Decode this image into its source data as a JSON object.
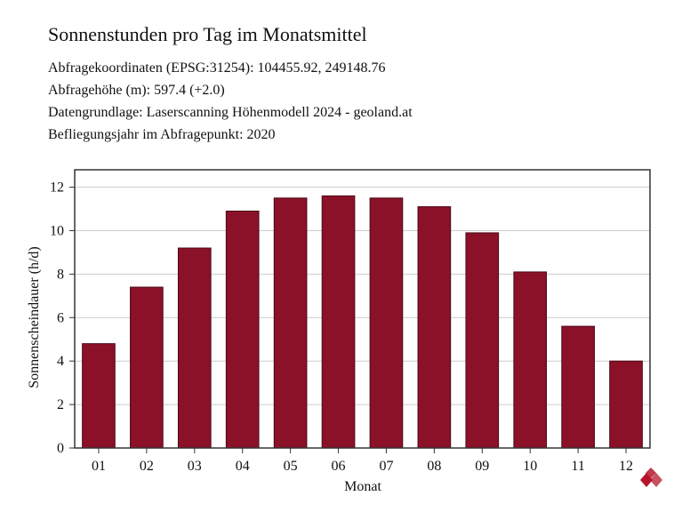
{
  "header": {
    "title": "Sonnenstunden pro Tag im Monatsmittel",
    "coords": "Abfragekoordinaten (EPSG:31254): 104455.92, 249148.76",
    "height": "Abfragehöhe (m): 597.4 (+2.0)",
    "source": "Datengrundlage: Laserscanning Höhenmodell 2024 - geoland.at",
    "flight_year": "Befliegungsjahr im Abfragepunkt: 2020"
  },
  "colors": {
    "bar": "#8b1129",
    "grid": "#cccccc",
    "axis": "#333333",
    "logo": "#b5152b"
  },
  "chart_data": {
    "type": "bar",
    "categories": [
      "01",
      "02",
      "03",
      "04",
      "05",
      "06",
      "07",
      "08",
      "09",
      "10",
      "11",
      "12"
    ],
    "values": [
      4.8,
      7.4,
      9.2,
      10.9,
      11.5,
      11.6,
      11.5,
      11.1,
      9.9,
      8.1,
      5.6,
      4.0
    ],
    "title": "",
    "xlabel": "Monat",
    "ylabel": "Sonnenscheindauer (h/d)",
    "ylim": [
      0,
      12.8
    ],
    "yticks": [
      0,
      2,
      4,
      6,
      8,
      10,
      12
    ],
    "grid": true,
    "legend": "none"
  }
}
